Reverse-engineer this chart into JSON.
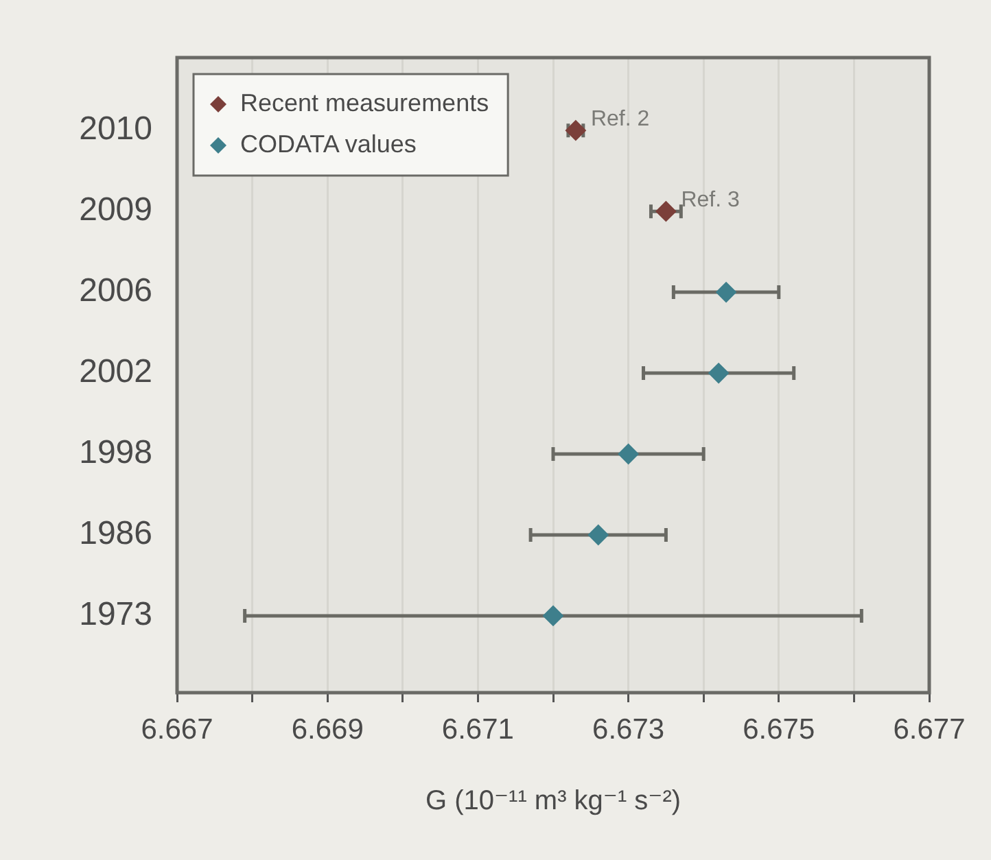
{
  "chart_data": {
    "type": "scatter",
    "orientation": "horizontal",
    "xlabel": "G (10⁻¹¹ m³ kg⁻¹ s⁻²)",
    "categories": [
      "2010",
      "2009",
      "2006",
      "2002",
      "1998",
      "1986",
      "1973"
    ],
    "series": [
      {
        "name": "Recent measurements",
        "color": "#7b3f3a",
        "values": [
          6.6723,
          6.6735,
          null,
          null,
          null,
          null,
          null
        ],
        "errors": [
          0.0001,
          0.0002,
          null,
          null,
          null,
          null,
          null
        ]
      },
      {
        "name": "CODATA values",
        "color": "#3e7f8c",
        "values": [
          null,
          null,
          6.6743,
          6.6742,
          6.673,
          6.6726,
          6.672
        ],
        "errors": [
          null,
          null,
          0.0007,
          0.001,
          0.001,
          0.0009,
          0.0041
        ]
      }
    ],
    "xlim": [
      6.667,
      6.677
    ],
    "xticks": [
      6.667,
      {
        "value": 6.668,
        "label": null
      },
      6.669,
      {
        "value": 6.67,
        "label": null
      },
      6.671,
      {
        "value": 6.672,
        "label": null
      },
      6.673,
      {
        "value": 6.674,
        "label": null
      },
      6.675,
      {
        "value": 6.676,
        "label": null
      },
      6.677
    ],
    "annotations": [
      {
        "text": "Ref. 2",
        "x": 6.6723,
        "y": "2010"
      },
      {
        "text": "Ref. 3",
        "x": 6.6735,
        "y": "2009"
      }
    ],
    "grid": "x",
    "legend": "top left",
    "marker": "diamond"
  }
}
